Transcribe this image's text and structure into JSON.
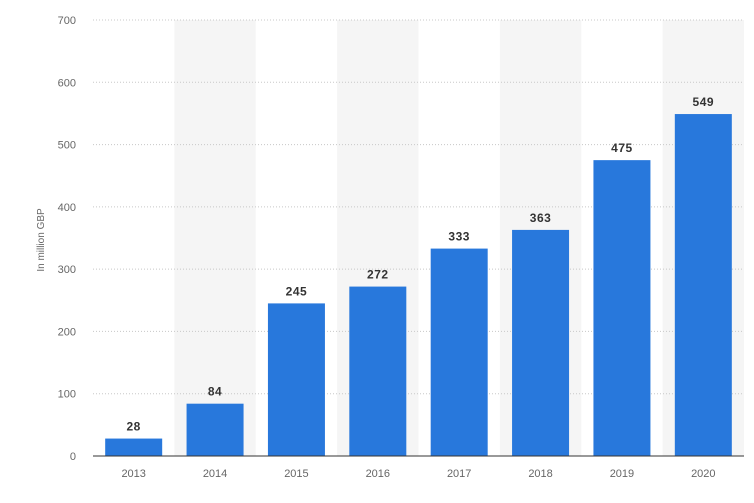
{
  "chart_data": {
    "type": "bar",
    "categories": [
      "2013",
      "2014",
      "2015",
      "2016",
      "2017",
      "2018",
      "2019",
      "2020"
    ],
    "values": [
      28,
      84,
      245,
      272,
      333,
      363,
      475,
      549
    ],
    "data_labels": [
      "28",
      "84",
      "245",
      "272",
      "333",
      "363",
      "475",
      "549"
    ],
    "ylabel": "In million GBP",
    "xlabel": "",
    "title": "",
    "ylim": [
      0,
      700
    ],
    "yticks": [
      0,
      100,
      200,
      300,
      400,
      500,
      600,
      700
    ],
    "ytick_labels": [
      "0",
      "100",
      "200",
      "300",
      "400",
      "500",
      "600",
      "700"
    ],
    "grid": true,
    "legend": "none",
    "colors": {
      "bar": "#2878dc",
      "alt_band": "#f5f5f5",
      "grid": "#c8c8c8",
      "axis": "#333333"
    }
  }
}
